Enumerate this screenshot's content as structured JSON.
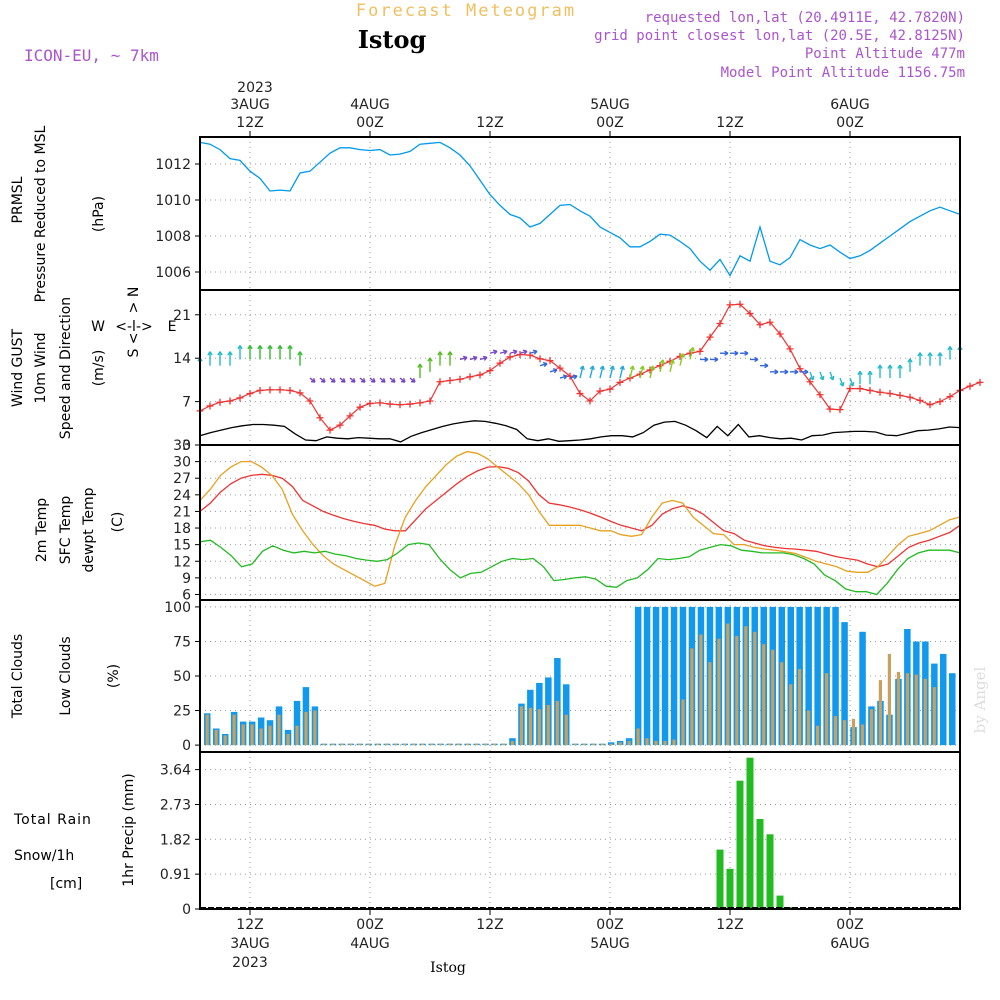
{
  "header": {
    "product": "Forecast Meteogram",
    "location": "Istog",
    "model": "ICON-EU, ~ 7km",
    "requested": "requested lon,lat (20.4911E, 42.7820N)",
    "gridpoint": "grid point closest lon,lat (20.5E, 42.8125N)",
    "point_alt": "Point Altitude 477m",
    "model_alt": "Model Point Altitude 1156.75m",
    "watermark": "by Angel",
    "footer": "Istog"
  },
  "time_axis": {
    "top_year": "2023",
    "labels": [
      {
        "hour": 12,
        "l1": "3AUG",
        "l2": "12Z"
      },
      {
        "hour": 24,
        "l1": "4AUG",
        "l2": "00Z"
      },
      {
        "hour": 36,
        "l1": "",
        "l2": "12Z"
      },
      {
        "hour": 48,
        "l1": "5AUG",
        "l2": "00Z"
      },
      {
        "hour": 60,
        "l1": "",
        "l2": "12Z"
      },
      {
        "hour": 72,
        "l1": "6AUG",
        "l2": "00Z"
      }
    ],
    "bottom": [
      {
        "hour": 12,
        "l1": "12Z",
        "l2": "3AUG",
        "l3": "2023"
      },
      {
        "hour": 24,
        "l1": "00Z",
        "l2": "4AUG",
        "l3": ""
      },
      {
        "hour": 36,
        "l1": "12Z",
        "l2": "",
        "l3": ""
      },
      {
        "hour": 48,
        "l1": "00Z",
        "l2": "5AUG",
        "l3": ""
      },
      {
        "hour": 60,
        "l1": "12Z",
        "l2": "",
        "l3": ""
      },
      {
        "hour": 72,
        "l1": "00Z",
        "l2": "6AUG",
        "l3": ""
      }
    ],
    "range_hours": [
      7,
      83
    ]
  },
  "chart_data": [
    {
      "type": "line",
      "title": "PRMSL Pressure Reduced to MSL",
      "label_lines": [
        "PRMSL",
        "Pressure Reduced to MSL"
      ],
      "ylabel": "(hPa)",
      "ylim": [
        1005,
        1013.5
      ],
      "yticks": [
        1006,
        1008,
        1010,
        1012
      ],
      "color": "#0099ee",
      "x": [
        7,
        8,
        9,
        10,
        11,
        12,
        13,
        14,
        15,
        16,
        17,
        18,
        19,
        20,
        21,
        22,
        23,
        24,
        25,
        26,
        27,
        28,
        29,
        30,
        31,
        32,
        33,
        34,
        35,
        36,
        37,
        38,
        39,
        40,
        41,
        42,
        43,
        44,
        45,
        46,
        47,
        48,
        49,
        50,
        51,
        52,
        53,
        54,
        55,
        56,
        57,
        58,
        59,
        60,
        61,
        62,
        63,
        64,
        65,
        66,
        67,
        68,
        69,
        70,
        71,
        72,
        73,
        74,
        75,
        76,
        77,
        78,
        79,
        80,
        81,
        82,
        83
      ],
      "values": [
        1013.2,
        1013.1,
        1012.8,
        1012.3,
        1012.2,
        1011.6,
        1011.2,
        1010.5,
        1010.55,
        1010.5,
        1011.5,
        1011.6,
        1012.1,
        1012.6,
        1012.9,
        1012.9,
        1012.8,
        1012.75,
        1012.8,
        1012.5,
        1012.55,
        1012.7,
        1013.1,
        1013.15,
        1013.2,
        1012.9,
        1012.5,
        1011.9,
        1011.1,
        1010.3,
        1009.7,
        1009.2,
        1009.0,
        1008.5,
        1008.7,
        1009.2,
        1009.7,
        1009.75,
        1009.4,
        1009.1,
        1008.5,
        1008.2,
        1007.9,
        1007.4,
        1007.4,
        1007.7,
        1008.1,
        1008.05,
        1007.7,
        1007.3,
        1006.6,
        1006.1,
        1006.7,
        1005.8,
        1006.9,
        1006.6,
        1008.5,
        1006.6,
        1006.4,
        1006.8,
        1007.8,
        1007.5,
        1007.3,
        1007.5,
        1007.1,
        1006.75,
        1006.9,
        1007.2,
        1007.6,
        1008.0,
        1008.4,
        1008.8,
        1009.1,
        1009.4,
        1009.6,
        1009.4,
        1009.2
      ]
    },
    {
      "type": "line",
      "title": "Wind GUST / 10m Wind Speed and Direction",
      "label_lines": [
        "Wind GUST",
        "10m Wind",
        "Speed and Direction"
      ],
      "ylabel": "(m/s)",
      "compass": {
        "n": "N",
        "w": "W",
        "e": "E",
        "s": "S"
      },
      "ylim": [
        0,
        25
      ],
      "yticks": [
        0,
        7,
        14,
        21
      ],
      "series": [
        {
          "name": "Wind GUST",
          "color": "#ee3333",
          "values": [
            5.5,
            6.3,
            6.9,
            7.1,
            7.6,
            8.3,
            8.8,
            8.9,
            8.9,
            8.8,
            8.4,
            7.1,
            4.4,
            2.4,
            3.2,
            4.7,
            6.1,
            6.7,
            6.8,
            6.6,
            6.5,
            6.6,
            6.8,
            7.1,
            10.2,
            10.4,
            10.6,
            11.0,
            11.3,
            12.0,
            13.2,
            14.2,
            14.6,
            14.5,
            13.9,
            13.6,
            12.4,
            11.1,
            8.3,
            7.1,
            8.7,
            9.0,
            10.1,
            10.8,
            11.4,
            12.1,
            12.8,
            13.5,
            14.3,
            14.8,
            15.1,
            17.4,
            19.6,
            22.6,
            22.7,
            21.2,
            19.4,
            19.8,
            17.9,
            15.5,
            12.3,
            10.2,
            8.1,
            5.8,
            5.7,
            9.1,
            9.1,
            8.8,
            8.5,
            8.3,
            8.0,
            7.7,
            7.2,
            6.5,
            7.0,
            7.8,
            8.8,
            9.5,
            10.1
          ]
        },
        {
          "name": "10m Wind",
          "color": "#000000",
          "values": [
            1.5,
            2.0,
            2.4,
            2.8,
            3.1,
            3.3,
            3.3,
            3.2,
            3.0,
            1.8,
            0.8,
            0.7,
            1.3,
            1.1,
            1.0,
            1.2,
            1.1,
            1.0,
            1.0,
            0.5,
            1.4,
            2.0,
            2.5,
            3.0,
            3.4,
            3.7,
            3.9,
            3.8,
            3.5,
            3.1,
            2.5,
            1.0,
            0.7,
            1.0,
            0.6,
            0.7,
            0.8,
            1.0,
            1.3,
            1.5,
            1.5,
            1.3,
            2.0,
            3.2,
            3.7,
            3.8,
            3.2,
            2.3,
            1.2,
            3.0,
            1.5,
            3.3,
            1.3,
            1.5,
            1.2,
            1.0,
            1.1,
            0.8,
            1.5,
            1.6,
            2.0,
            2.1,
            2.2,
            2.2,
            2.1,
            1.6,
            1.5,
            1.9,
            2.3,
            2.4,
            2.6,
            2.9,
            2.8
          ]
        }
      ],
      "arrow_row_level": [
        13,
        14,
        14,
        14,
        15,
        15,
        15,
        15,
        15,
        15,
        14,
        12,
        12,
        12,
        12,
        12,
        12,
        12,
        12,
        12,
        12,
        12,
        12,
        13,
        14,
        14,
        15,
        15,
        15,
        16,
        16,
        16,
        16,
        16,
        14,
        13,
        12,
        12,
        12,
        12,
        12,
        12,
        12,
        12,
        12,
        12,
        13,
        13,
        14,
        15,
        15,
        15,
        16,
        16,
        16,
        15,
        14,
        13,
        13,
        13,
        13,
        13,
        13,
        13,
        12,
        12,
        11,
        11,
        12,
        12,
        12,
        13,
        14,
        14,
        14,
        15,
        15
      ]
    },
    {
      "type": "line",
      "title": "2m Temp / SFC Temp / dewpt Temp",
      "label_lines": [
        "2m Temp",
        "SFC Temp",
        "dewpt Temp"
      ],
      "ylabel": "(C)",
      "ylim": [
        5,
        33
      ],
      "yticks": [
        6,
        9,
        12,
        15,
        18,
        21,
        24,
        27,
        30,
        33
      ],
      "series": [
        {
          "name": "2m Temp",
          "color": "#ee3333",
          "values": [
            21.0,
            22.5,
            24.5,
            26.0,
            27.0,
            27.5,
            27.7,
            27.5,
            27.0,
            25.5,
            23.0,
            22.0,
            21.0,
            20.3,
            19.7,
            19.2,
            18.8,
            18.5,
            17.8,
            17.5,
            17.5,
            19.5,
            21.5,
            23.0,
            24.5,
            26.0,
            27.3,
            28.3,
            29.0,
            29.1,
            28.8,
            28.0,
            26.5,
            24.0,
            22.5,
            22.2,
            21.8,
            21.3,
            20.7,
            20.0,
            19.2,
            18.5,
            18.0,
            17.5,
            18.5,
            20.5,
            21.5,
            22.0,
            21.5,
            20.5,
            19.0,
            17.5,
            17.0,
            15.8,
            15.3,
            14.8,
            14.5,
            14.3,
            14.2,
            14.0,
            13.8,
            13.3,
            12.8,
            12.5,
            12.2,
            11.5,
            11.0,
            11.5,
            13.0,
            14.5,
            15.3,
            15.8,
            16.5,
            17.2,
            18.5
          ]
        },
        {
          "name": "SFC Temp",
          "color": "#e8a020",
          "values": [
            23.0,
            25.0,
            27.5,
            29.0,
            30.0,
            30.0,
            29.0,
            27.5,
            25.0,
            20.5,
            17.5,
            15.0,
            13.0,
            11.5,
            10.5,
            9.5,
            8.5,
            7.5,
            8.0,
            15.0,
            20.0,
            23.0,
            25.5,
            27.5,
            29.5,
            31.0,
            31.8,
            31.5,
            30.5,
            29.0,
            27.5,
            26.0,
            24.0,
            21.0,
            18.5,
            18.5,
            18.5,
            18.5,
            18.0,
            17.5,
            17.5,
            16.8,
            16.5,
            16.8,
            20.0,
            22.5,
            23.0,
            22.5,
            20.0,
            18.5,
            17.0,
            16.8,
            15.0,
            15.0,
            14.5,
            14.2,
            14.0,
            13.7,
            13.4,
            12.7,
            12.0,
            11.5,
            11.0,
            10.2,
            10.0,
            10.0,
            11.0,
            13.0,
            15.0,
            16.5,
            17.0,
            17.5,
            18.5,
            19.5,
            20.0
          ]
        },
        {
          "name": "dewpt Temp",
          "color": "#22bb22",
          "values": [
            15.5,
            15.8,
            14.5,
            13.0,
            11.0,
            11.5,
            13.8,
            14.8,
            14.0,
            13.5,
            13.8,
            13.5,
            13.8,
            13.3,
            13.0,
            12.5,
            12.2,
            12.0,
            12.3,
            13.5,
            15.0,
            15.3,
            15.0,
            12.5,
            10.5,
            9.0,
            9.8,
            10.0,
            11.0,
            12.0,
            12.5,
            12.3,
            12.5,
            11.0,
            8.5,
            8.7,
            9.0,
            9.2,
            8.8,
            7.5,
            7.3,
            8.5,
            9.0,
            10.5,
            12.5,
            12.3,
            12.5,
            12.8,
            14.0,
            14.5,
            15.0,
            14.8,
            14.0,
            13.8,
            13.5,
            13.5,
            13.5,
            13.2,
            12.5,
            11.5,
            9.5,
            8.5,
            7.0,
            6.5,
            6.5,
            6.0,
            8.0,
            10.5,
            12.5,
            13.5,
            14.0,
            14.0,
            14.0,
            13.5
          ]
        }
      ]
    },
    {
      "type": "bar",
      "title": "Total Clouds / Low Clouds",
      "label_lines": [
        "Total Clouds",
        "Low Clouds"
      ],
      "ylabel": "(%)",
      "ylim": [
        -5,
        105
      ],
      "yticks": [
        0,
        25,
        50,
        75,
        100
      ],
      "series": [
        {
          "name": "Total Clouds",
          "color": "#1199ee",
          "values": [
            23,
            12,
            8,
            24,
            17,
            17,
            20,
            18,
            28,
            11,
            32,
            42,
            28,
            1,
            1,
            1,
            1,
            1,
            1,
            1,
            1,
            1,
            1,
            1,
            1,
            1,
            1,
            1,
            1,
            1,
            1,
            1,
            1,
            1,
            5,
            30,
            40,
            45,
            49,
            63,
            44,
            1,
            1,
            1,
            1,
            2,
            3,
            5,
            100,
            100,
            100,
            100,
            100,
            100,
            100,
            100,
            100,
            100,
            100,
            100,
            100,
            100,
            100,
            100,
            100,
            100,
            100,
            100,
            100,
            100,
            100,
            89,
            13,
            82,
            28,
            32,
            22,
            48,
            84,
            75,
            75,
            59,
            66,
            52
          ]
        },
        {
          "name": "Low Clouds",
          "color": "#c8a060",
          "values": [
            22,
            11,
            7,
            22,
            15,
            15,
            12,
            14,
            22,
            8,
            14,
            24,
            25,
            1,
            1,
            1,
            1,
            1,
            1,
            1,
            1,
            1,
            1,
            1,
            1,
            1,
            1,
            1,
            1,
            1,
            1,
            1,
            1,
            1,
            3,
            28,
            27,
            26,
            29,
            32,
            22,
            1,
            1,
            1,
            1,
            1,
            2,
            3,
            12,
            5,
            3,
            3,
            4,
            33,
            70,
            80,
            60,
            77,
            88,
            79,
            86,
            82,
            73,
            69,
            60,
            44,
            55,
            25,
            14,
            52,
            21,
            18,
            19,
            15,
            26,
            47,
            66,
            53,
            52,
            51,
            48,
            42
          ]
        }
      ]
    },
    {
      "type": "bar",
      "title": "1hr Precip (mm)",
      "label_lines": [
        "Total Rain",
        "Snow/1h",
        "[cm]"
      ],
      "ylabel": "1hr Precip (mm)",
      "ylim": [
        0,
        4.1
      ],
      "yticks": [
        0,
        0.91,
        1.82,
        2.73,
        3.64
      ],
      "series": [
        {
          "name": "Total Rain",
          "color": "#22bb22",
          "x": [
            59,
            60,
            61,
            62,
            63,
            64,
            65,
            66
          ],
          "values": [
            1.55,
            1.05,
            3.35,
            3.95,
            2.35,
            1.95,
            0.35,
            0.05
          ]
        },
        {
          "name": "Snow/1h [cm]",
          "color": "#3333dd",
          "x": [],
          "values": []
        }
      ]
    }
  ]
}
